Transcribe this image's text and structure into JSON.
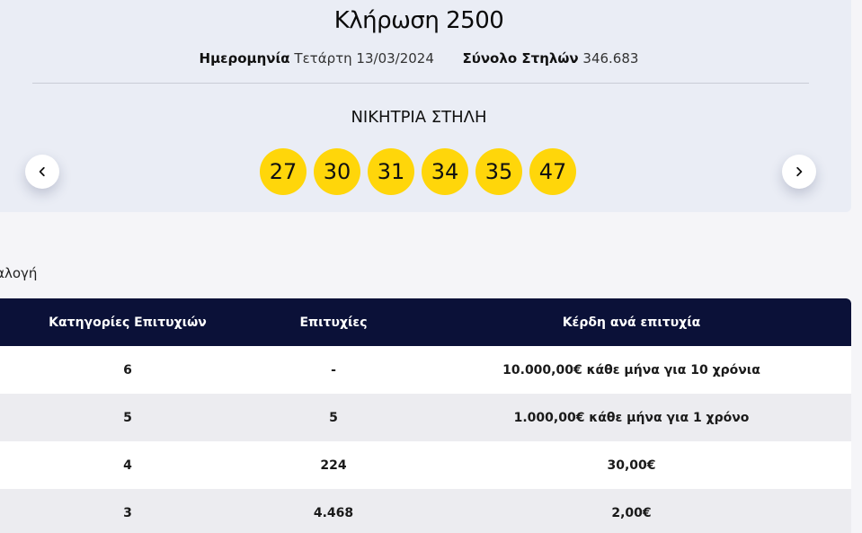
{
  "draw": {
    "title": "Κλήρωση 2500",
    "date_label": "Ημερομηνία",
    "date_value": "Τετάρτη 13/03/2024",
    "columns_label": "Σύνολο Στηλών",
    "columns_value": "346.683",
    "winning_title": "ΝΙΚΗΤΡΙΑ ΣΤΗΛΗ",
    "numbers": [
      "27",
      "30",
      "31",
      "34",
      "35",
      "47"
    ],
    "ball_color": "#ffd60a",
    "prev_icon": "chevron-left-icon",
    "next_icon": "chevron-right-icon"
  },
  "section": {
    "label": "ιαλογή"
  },
  "table": {
    "headers": [
      "Κατηγορίες Επιτυχιών",
      "Επιτυχίες",
      "Κέρδη ανά επιτυχία"
    ],
    "header_bg": "#0b1138",
    "rows": [
      [
        "6",
        "-",
        "10.000,00€ κάθε μήνα για 10 χρόνια"
      ],
      [
        "5",
        "5",
        "1.000,00€ κάθε μήνα για 1 χρόνο"
      ],
      [
        "4",
        "224",
        "30,00€"
      ],
      [
        "3",
        "4.468",
        "2,00€"
      ]
    ]
  }
}
